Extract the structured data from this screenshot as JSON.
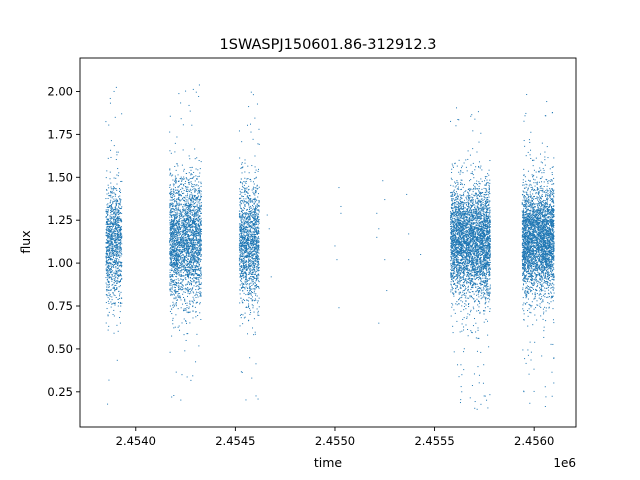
{
  "chart_data": {
    "type": "scatter",
    "title": "1SWASPJ150601.86-312912.3",
    "xlabel": "time",
    "ylabel": "flux",
    "x_offset_label": "1e6",
    "xlim": [
      2.45372,
      2.45621
    ],
    "ylim": [
      0.045,
      2.195
    ],
    "x_ticks": [
      2.454,
      2.4545,
      2.455,
      2.4555,
      2.456
    ],
    "x_tick_labels": [
      "2.4540",
      "2.4545",
      "2.4550",
      "2.4555",
      "2.4560"
    ],
    "y_ticks": [
      0.25,
      0.5,
      0.75,
      1.0,
      1.25,
      1.5,
      1.75,
      2.0
    ],
    "y_tick_labels": [
      "0.25",
      "0.50",
      "0.75",
      "1.00",
      "1.25",
      "1.50",
      "1.75",
      "2.00"
    ],
    "grid": false,
    "marker_color": "#1f77b4",
    "series": [
      {
        "clusters": [
          {
            "x_range": [
              2.45385,
              2.45393
            ],
            "center": 1.12,
            "spread": 0.17,
            "n": 1100,
            "y_min": 0.16,
            "y_max": 2.08
          },
          {
            "x_range": [
              2.45417,
              2.45433
            ],
            "center": 1.13,
            "spread": 0.18,
            "n": 2600,
            "y_min": 0.2,
            "y_max": 2.06
          },
          {
            "x_range": [
              2.45452,
              2.45462
            ],
            "center": 1.12,
            "spread": 0.17,
            "n": 1500,
            "y_min": 0.2,
            "y_max": 2.08
          },
          {
            "x_range": [
              2.45558,
              2.45578
            ],
            "center": 1.13,
            "spread": 0.16,
            "n": 3800,
            "y_min": 0.14,
            "y_max": 1.92
          },
          {
            "x_range": [
              2.45594,
              2.4561
            ],
            "center": 1.13,
            "spread": 0.16,
            "n": 3400,
            "y_min": 0.15,
            "y_max": 2.06
          }
        ],
        "sparse_points": [
          {
            "x": 2.45466,
            "y": 1.28
          },
          {
            "x": 2.45467,
            "y": 1.2
          },
          {
            "x": 2.45468,
            "y": 0.92
          },
          {
            "x": 2.45502,
            "y": 1.44
          },
          {
            "x": 2.45503,
            "y": 1.33
          },
          {
            "x": 2.45503,
            "y": 1.29
          },
          {
            "x": 2.455,
            "y": 1.1
          },
          {
            "x": 2.45501,
            "y": 1.02
          },
          {
            "x": 2.45502,
            "y": 0.74
          },
          {
            "x": 2.45521,
            "y": 1.29
          },
          {
            "x": 2.45522,
            "y": 1.2
          },
          {
            "x": 2.45521,
            "y": 1.15
          },
          {
            "x": 2.45522,
            "y": 0.65
          },
          {
            "x": 2.45524,
            "y": 1.48
          },
          {
            "x": 2.45525,
            "y": 1.37
          },
          {
            "x": 2.45525,
            "y": 1.02
          },
          {
            "x": 2.45526,
            "y": 0.84
          },
          {
            "x": 2.45536,
            "y": 1.4
          },
          {
            "x": 2.45537,
            "y": 1.17
          },
          {
            "x": 2.45537,
            "y": 1.02
          },
          {
            "x": 2.45543,
            "y": 1.05
          }
        ]
      }
    ]
  }
}
